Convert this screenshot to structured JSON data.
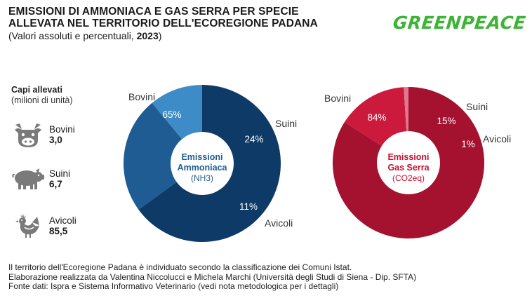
{
  "header": {
    "title_line1": "EMISSIONI DI AMMONIACA E GAS SERRA PER SPECIE",
    "title_line2": "ALLEVATA NEL TERRITORIO DELL'ECOREGIONE PADANA",
    "subtitle_text": "(Valori assoluti e percentuali, ",
    "subtitle_year": "2023",
    "subtitle_close": ")",
    "logo": "GREENPEACE"
  },
  "livestock": {
    "heading": "Capi allevati",
    "subheading": "(milioni di unità)",
    "items": [
      {
        "label": "Bovini",
        "value": "3,0",
        "icon": "cow-icon"
      },
      {
        "label": "Suini",
        "value": "6,7",
        "icon": "pig-icon"
      },
      {
        "label": "Avicoli",
        "value": "85,5",
        "icon": "chicken-icon"
      }
    ]
  },
  "chart_data": [
    {
      "type": "pie",
      "center_title_line1": "Emissioni",
      "center_title_line2": "Ammoniaca",
      "center_subtitle": "(NH3)",
      "categories": [
        "Bovini",
        "Suini",
        "Avicoli"
      ],
      "values": [
        65,
        24,
        11
      ],
      "value_labels": [
        "65%",
        "24%",
        "11%"
      ],
      "colors": [
        "#0d3a66",
        "#1f5c93",
        "#3d8cc8"
      ],
      "center_color": "#1f5c93"
    },
    {
      "type": "pie",
      "center_title_line1": "Emissioni",
      "center_title_line2": "Gas Serra",
      "center_subtitle": "(CO2eq)",
      "categories": [
        "Bovini",
        "Suini",
        "Avicoli"
      ],
      "values": [
        84,
        15,
        1
      ],
      "value_labels": [
        "84%",
        "15%",
        "1%"
      ],
      "colors": [
        "#a4122f",
        "#cc1a3c",
        "#e0788b"
      ],
      "center_color": "#c8102e"
    }
  ],
  "footnotes": [
    "Il territorio dell'Ecoregione Padana è individuato secondo la classificazione dei Comuni Istat.",
    "Elaborazione realizzata da Valentina Niccolucci e Michela Marchi (Università degli Studi di Siena - Dip. SFTA)",
    "Fonte dati: Ispra e Sistema Informativo Veterinario (vedi nota metodologica per i dettagli)"
  ]
}
